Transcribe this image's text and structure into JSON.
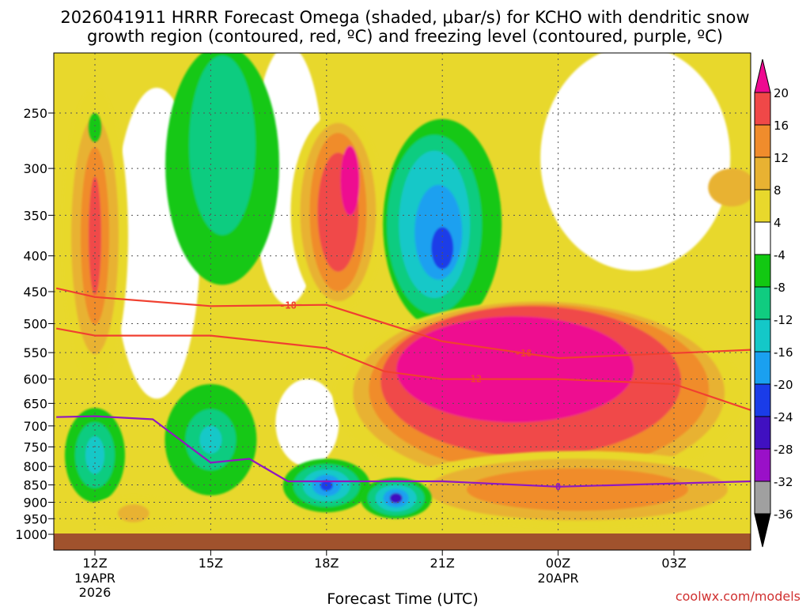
{
  "chart_data": {
    "type": "heatmap",
    "title_line1": "2026041911 HRRR Forecast Omega (shaded, μbar/s) for KCHO with dendritic snow",
    "title_line2": "growth region (contoured, red, ºC) and freezing level (contoured, purple, ºC)",
    "xlabel": "Forecast Time (UTC)",
    "ylabel": "",
    "credit": "coolwx.com/models",
    "x_ticks": [
      {
        "label": "12Z",
        "sub": [
          "19APR",
          "2026"
        ],
        "hour": 0
      },
      {
        "label": "15Z",
        "sub": [],
        "hour": 3
      },
      {
        "label": "18Z",
        "sub": [],
        "hour": 6
      },
      {
        "label": "21Z",
        "sub": [],
        "hour": 9
      },
      {
        "label": "00Z",
        "sub": [
          "20APR"
        ],
        "hour": 12
      },
      {
        "label": "03Z",
        "sub": [],
        "hour": 15
      }
    ],
    "x_range_hours": [
      -1,
      17
    ],
    "y_ticks": [
      250,
      300,
      350,
      400,
      450,
      500,
      550,
      600,
      650,
      700,
      750,
      800,
      850,
      900,
      950,
      1000
    ],
    "y_range_hpa": [
      200,
      1000
    ],
    "y_scale": "log",
    "grid": true,
    "colorbar": {
      "levels": [
        -36,
        -32,
        -28,
        -24,
        -20,
        -16,
        -12,
        -8,
        -4,
        4,
        8,
        12,
        16,
        20
      ],
      "colors": [
        "#a0a0a0",
        "#9a10c8",
        "#4010c0",
        "#1a3ce8",
        "#1aa0f0",
        "#14c8c8",
        "#10cc80",
        "#12c812",
        "#ffffff",
        "#e8d82c",
        "#e8b232",
        "#f08c2c",
        "#f04848",
        "#ee0a90"
      ],
      "under_color": "#000000",
      "over_color": "#ee0a90",
      "units": "μbar/s"
    },
    "omega_features": [
      {
        "name": "early weak ascent column",
        "hour": 0,
        "p_top": 240,
        "p_bottom": 590,
        "value": 16
      },
      {
        "name": "upper subsidence band",
        "hour": 2.5,
        "p_top": 200,
        "p_bottom": 460,
        "value": -12
      },
      {
        "name": "18Z ascent plume",
        "hour": 6.2,
        "p_top": 270,
        "p_bottom": 460,
        "value": 20
      },
      {
        "name": "21Z subsidence",
        "hour": 9,
        "p_top": 250,
        "p_bottom": 500,
        "value": -24
      },
      {
        "name": "strong mid-level ascent",
        "hour": 11.5,
        "p_top": 520,
        "p_bottom": 800,
        "value": 20
      },
      {
        "name": "low-level subsidence 18Z",
        "hour": 6,
        "p_top": 780,
        "p_bottom": 920,
        "value": -20
      },
      {
        "name": "low-level subsidence 20Z",
        "hour": 8,
        "p_top": 840,
        "p_bottom": 940,
        "value": -28
      }
    ],
    "dendritic_contours": [
      {
        "label": "-18",
        "points": [
          [
            -1,
            445
          ],
          [
            0,
            458
          ],
          [
            3,
            472
          ],
          [
            6,
            470
          ],
          [
            9,
            530
          ],
          [
            12,
            560
          ],
          [
            17,
            545
          ]
        ]
      },
      {
        "label": "-12",
        "points": [
          [
            -1,
            508
          ],
          [
            0,
            520
          ],
          [
            3,
            520
          ],
          [
            6,
            542
          ],
          [
            7.5,
            585
          ],
          [
            9,
            600
          ],
          [
            12,
            600
          ],
          [
            15,
            610
          ],
          [
            17,
            665
          ]
        ]
      }
    ],
    "freezing_level": {
      "label": "0",
      "points": [
        [
          -1,
          680
        ],
        [
          0,
          678
        ],
        [
          1.5,
          685
        ],
        [
          3,
          790
        ],
        [
          4,
          780
        ],
        [
          5,
          840
        ],
        [
          9,
          840
        ],
        [
          12,
          855
        ],
        [
          17,
          840
        ]
      ]
    }
  }
}
